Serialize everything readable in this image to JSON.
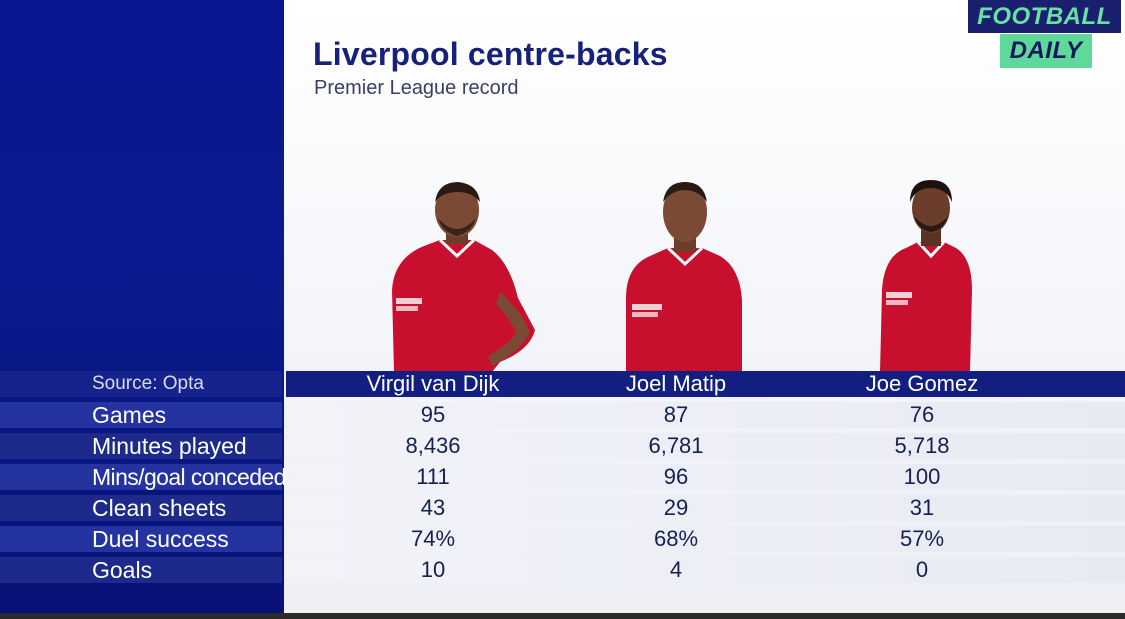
{
  "title": "Liverpool centre-backs",
  "subtitle": "Premier League record",
  "logo": {
    "line1": "FOOTBALL",
    "line2": "DAILY"
  },
  "colors": {
    "panel_blue": "#0b1a8e",
    "title_blue": "#17207a",
    "kit_red": "#c8102e",
    "logo_green": "#5fd99b"
  },
  "table": {
    "source_label": "Source: Opta",
    "players": [
      "Virgil van Dijk",
      "Joel Matip",
      "Joe Gomez"
    ],
    "rows": [
      {
        "label": "Games",
        "values": [
          "95",
          "87",
          "76"
        ]
      },
      {
        "label": "Minutes played",
        "values": [
          "8,436",
          "6,781",
          "5,718"
        ]
      },
      {
        "label": "Mins/goal conceded",
        "values": [
          "111",
          "96",
          "100"
        ]
      },
      {
        "label": "Clean sheets",
        "values": [
          "43",
          "29",
          "31"
        ]
      },
      {
        "label": "Duel success",
        "values": [
          "74%",
          "68%",
          "57%"
        ]
      },
      {
        "label": "Goals",
        "values": [
          "10",
          "4",
          "0"
        ]
      }
    ]
  }
}
